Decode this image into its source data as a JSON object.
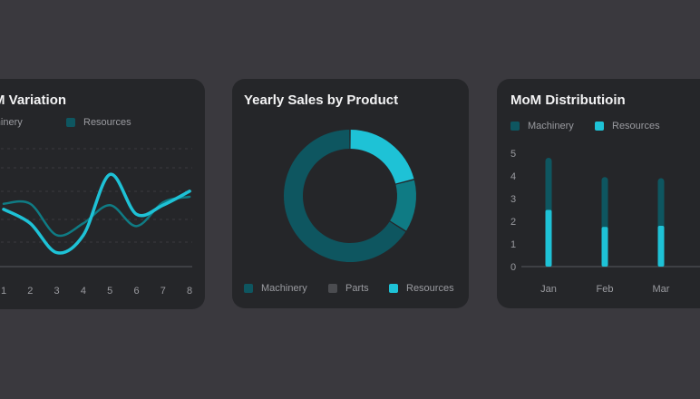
{
  "colors": {
    "background": "#3a393e",
    "card": "#252629",
    "machinery": "#0e5660",
    "parts": "#4b4c50",
    "resources": "#1ec2d6",
    "mid_teal": "#0f7b84"
  },
  "left_card": {
    "title": "M Variation",
    "legend": [
      "Machinery",
      "Resources"
    ],
    "chart_data": {
      "type": "line",
      "x": [
        1,
        2,
        3,
        4,
        5,
        6,
        7,
        8
      ],
      "xlabel": "",
      "ylabel": "",
      "series": [
        {
          "name": "Machinery",
          "values": [
            0.9,
            0.9,
            0.45,
            0.62,
            0.88,
            0.58,
            0.92,
            1.0
          ]
        },
        {
          "name": "Resources",
          "values": [
            0.82,
            0.62,
            0.2,
            0.45,
            1.32,
            0.75,
            0.88,
            1.08
          ]
        }
      ]
    }
  },
  "mid_card": {
    "title": "Yearly Sales by Product",
    "legend": [
      "Machinery",
      "Parts",
      "Resources"
    ],
    "chart_data": {
      "type": "pie",
      "variant": "donut",
      "categories": [
        "Resources",
        "Parts",
        "Machinery"
      ],
      "values": [
        21,
        13,
        66
      ]
    }
  },
  "right_card": {
    "title": "MoM Distributioin",
    "legend": [
      "Machinery",
      "Resources"
    ],
    "chart_data": {
      "type": "bar",
      "stacked": true,
      "categories": [
        "Jan",
        "Feb",
        "Mar"
      ],
      "yticks": [
        "0",
        "1",
        "2",
        "3",
        "4",
        "5"
      ],
      "ylim": [
        0,
        5
      ],
      "series": [
        {
          "name": "Resources",
          "values": [
            2.5,
            1.75,
            1.8
          ]
        },
        {
          "name": "Machinery",
          "values": [
            2.3,
            2.2,
            2.1
          ]
        }
      ]
    }
  }
}
